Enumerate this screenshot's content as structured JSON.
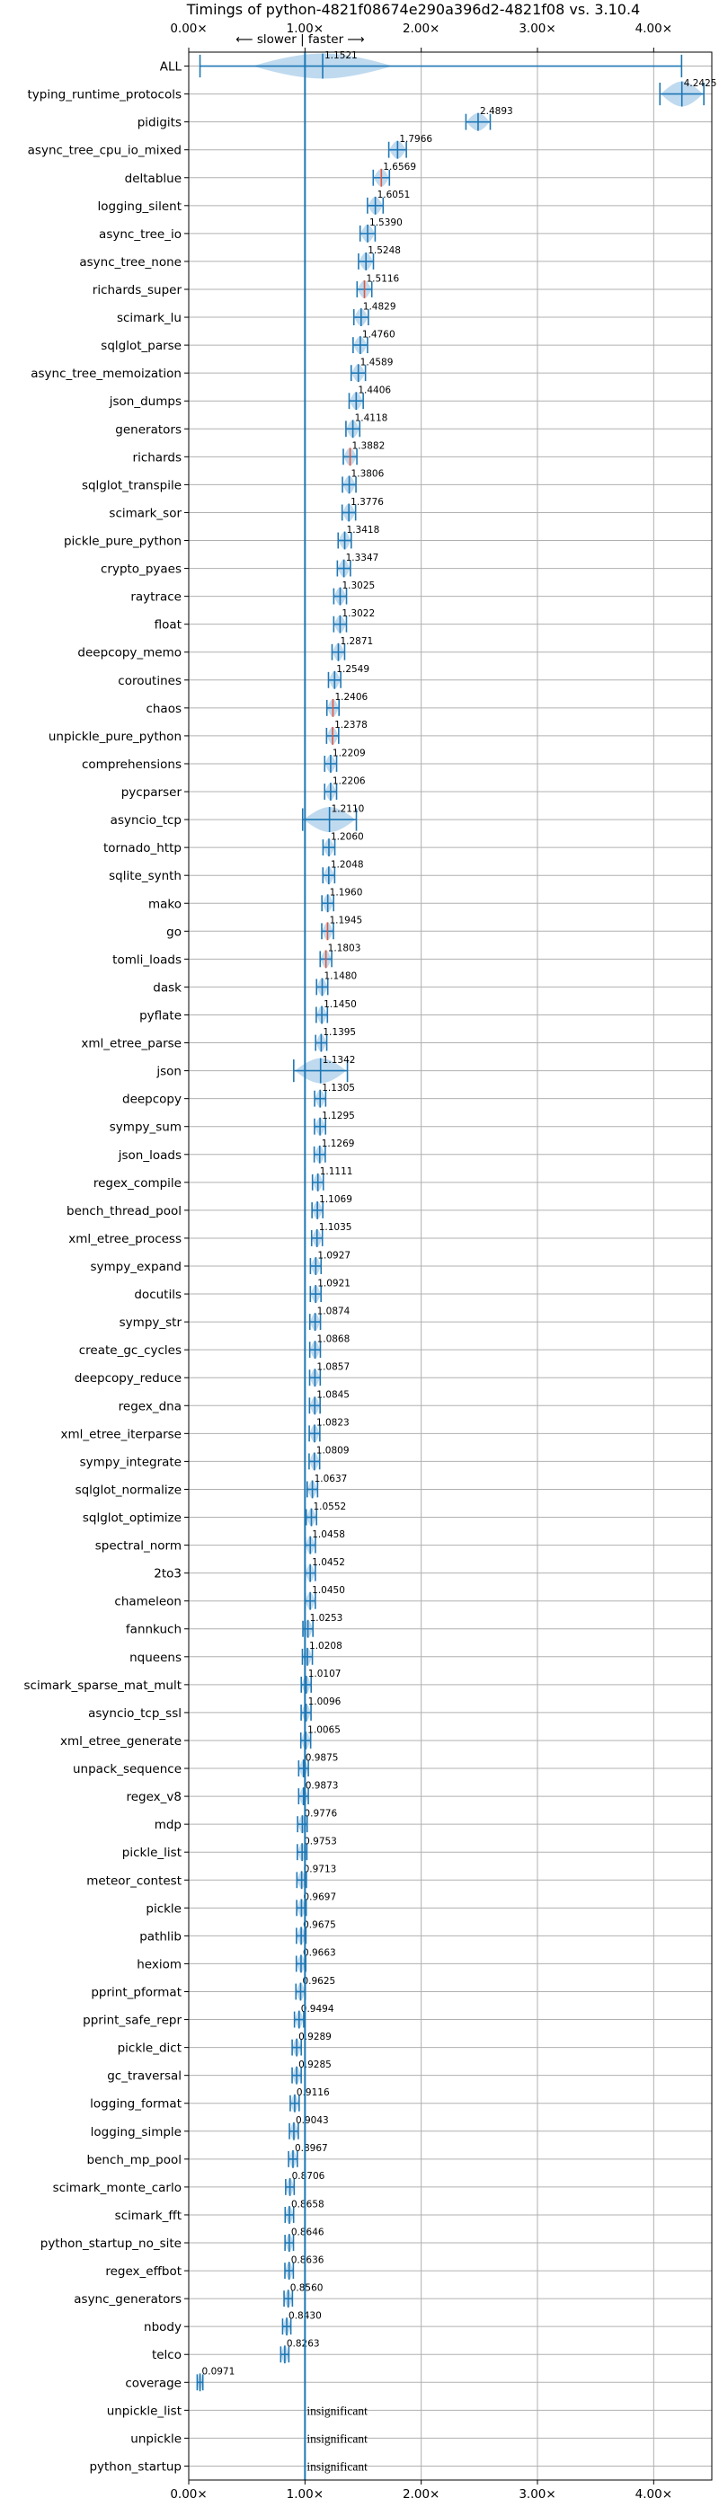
{
  "chart_data": {
    "type": "violin",
    "title": "Timings of python-4821f08674e290a396d2-4821f08 vs. 3.10.4",
    "xlim": [
      0,
      4.5
    ],
    "x_ticks": [
      0,
      1,
      2,
      3,
      4
    ],
    "x_tick_labels": [
      "0.00×",
      "1.00×",
      "2.00×",
      "3.00×",
      "4.00×"
    ],
    "top_annotation": "⟵ slower  |  faster ⟶",
    "reference_line": 1.0,
    "grid": true,
    "colors": {
      "violin": "#a9cdea",
      "line": "#1f77b4",
      "median": "#e6553a"
    },
    "benchmarks": [
      {
        "name": "ALL",
        "value": 1.1521,
        "label": "1.1521"
      },
      {
        "name": "typing_runtime_protocols",
        "value": 4.2425,
        "label": "4.2425"
      },
      {
        "name": "pidigits",
        "value": 2.4893,
        "label": "2.4893"
      },
      {
        "name": "async_tree_cpu_io_mixed",
        "value": 1.7966,
        "label": "1.7966"
      },
      {
        "name": "deltablue",
        "value": 1.6569,
        "label": "1.6569"
      },
      {
        "name": "logging_silent",
        "value": 1.6051,
        "label": "1.6051"
      },
      {
        "name": "async_tree_io",
        "value": 1.539,
        "label": "1.5390"
      },
      {
        "name": "async_tree_none",
        "value": 1.5248,
        "label": "1.5248"
      },
      {
        "name": "richards_super",
        "value": 1.5116,
        "label": "1.5116"
      },
      {
        "name": "scimark_lu",
        "value": 1.4829,
        "label": "1.4829"
      },
      {
        "name": "sqlglot_parse",
        "value": 1.476,
        "label": "1.4760"
      },
      {
        "name": "async_tree_memoization",
        "value": 1.4589,
        "label": "1.4589"
      },
      {
        "name": "json_dumps",
        "value": 1.4406,
        "label": "1.4406"
      },
      {
        "name": "generators",
        "value": 1.4118,
        "label": "1.4118"
      },
      {
        "name": "richards",
        "value": 1.3882,
        "label": "1.3882"
      },
      {
        "name": "sqlglot_transpile",
        "value": 1.3806,
        "label": "1.3806"
      },
      {
        "name": "scimark_sor",
        "value": 1.3776,
        "label": "1.3776"
      },
      {
        "name": "pickle_pure_python",
        "value": 1.3418,
        "label": "1.3418"
      },
      {
        "name": "crypto_pyaes",
        "value": 1.3347,
        "label": "1.3347"
      },
      {
        "name": "raytrace",
        "value": 1.3025,
        "label": "1.3025"
      },
      {
        "name": "float",
        "value": 1.3022,
        "label": "1.3022"
      },
      {
        "name": "deepcopy_memo",
        "value": 1.2871,
        "label": "1.2871"
      },
      {
        "name": "coroutines",
        "value": 1.2549,
        "label": "1.2549"
      },
      {
        "name": "chaos",
        "value": 1.2406,
        "label": "1.2406"
      },
      {
        "name": "unpickle_pure_python",
        "value": 1.2378,
        "label": "1.2378"
      },
      {
        "name": "comprehensions",
        "value": 1.2209,
        "label": "1.2209"
      },
      {
        "name": "pycparser",
        "value": 1.2206,
        "label": "1.2206"
      },
      {
        "name": "asyncio_tcp",
        "value": 1.211,
        "label": "1.2110"
      },
      {
        "name": "tornado_http",
        "value": 1.206,
        "label": "1.2060"
      },
      {
        "name": "sqlite_synth",
        "value": 1.2048,
        "label": "1.2048"
      },
      {
        "name": "mako",
        "value": 1.196,
        "label": "1.1960"
      },
      {
        "name": "go",
        "value": 1.1945,
        "label": "1.1945"
      },
      {
        "name": "tomli_loads",
        "value": 1.1803,
        "label": "1.1803"
      },
      {
        "name": "dask",
        "value": 1.148,
        "label": "1.1480"
      },
      {
        "name": "pyflate",
        "value": 1.145,
        "label": "1.1450"
      },
      {
        "name": "xml_etree_parse",
        "value": 1.1395,
        "label": "1.1395"
      },
      {
        "name": "json",
        "value": 1.1342,
        "label": "1.1342"
      },
      {
        "name": "deepcopy",
        "value": 1.1305,
        "label": "1.1305"
      },
      {
        "name": "sympy_sum",
        "value": 1.1295,
        "label": "1.1295"
      },
      {
        "name": "json_loads",
        "value": 1.1269,
        "label": "1.1269"
      },
      {
        "name": "regex_compile",
        "value": 1.1111,
        "label": "1.1111"
      },
      {
        "name": "bench_thread_pool",
        "value": 1.1069,
        "label": "1.1069"
      },
      {
        "name": "xml_etree_process",
        "value": 1.1035,
        "label": "1.1035"
      },
      {
        "name": "sympy_expand",
        "value": 1.0927,
        "label": "1.0927"
      },
      {
        "name": "docutils",
        "value": 1.0921,
        "label": "1.0921"
      },
      {
        "name": "sympy_str",
        "value": 1.0874,
        "label": "1.0874"
      },
      {
        "name": "create_gc_cycles",
        "value": 1.0868,
        "label": "1.0868"
      },
      {
        "name": "deepcopy_reduce",
        "value": 1.0857,
        "label": "1.0857"
      },
      {
        "name": "regex_dna",
        "value": 1.0845,
        "label": "1.0845"
      },
      {
        "name": "xml_etree_iterparse",
        "value": 1.0823,
        "label": "1.0823"
      },
      {
        "name": "sympy_integrate",
        "value": 1.0809,
        "label": "1.0809"
      },
      {
        "name": "sqlglot_normalize",
        "value": 1.0637,
        "label": "1.0637"
      },
      {
        "name": "sqlglot_optimize",
        "value": 1.0552,
        "label": "1.0552"
      },
      {
        "name": "spectral_norm",
        "value": 1.0458,
        "label": "1.0458"
      },
      {
        "name": "2to3",
        "value": 1.0452,
        "label": "1.0452"
      },
      {
        "name": "chameleon",
        "value": 1.045,
        "label": "1.0450"
      },
      {
        "name": "fannkuch",
        "value": 1.0253,
        "label": "1.0253"
      },
      {
        "name": "nqueens",
        "value": 1.0208,
        "label": "1.0208"
      },
      {
        "name": "scimark_sparse_mat_mult",
        "value": 1.0107,
        "label": "1.0107"
      },
      {
        "name": "asyncio_tcp_ssl",
        "value": 1.0096,
        "label": "1.0096"
      },
      {
        "name": "xml_etree_generate",
        "value": 1.0065,
        "label": "1.0065"
      },
      {
        "name": "unpack_sequence",
        "value": 0.9875,
        "label": "0.9875"
      },
      {
        "name": "regex_v8",
        "value": 0.9873,
        "label": "0.9873"
      },
      {
        "name": "mdp",
        "value": 0.9776,
        "label": "0.9776"
      },
      {
        "name": "pickle_list",
        "value": 0.9753,
        "label": "0.9753"
      },
      {
        "name": "meteor_contest",
        "value": 0.9713,
        "label": "0.9713"
      },
      {
        "name": "pickle",
        "value": 0.9697,
        "label": "0.9697"
      },
      {
        "name": "pathlib",
        "value": 0.9675,
        "label": "0.9675"
      },
      {
        "name": "hexiom",
        "value": 0.9663,
        "label": "0.9663"
      },
      {
        "name": "pprint_pformat",
        "value": 0.9625,
        "label": "0.9625"
      },
      {
        "name": "pprint_safe_repr",
        "value": 0.9494,
        "label": "0.9494"
      },
      {
        "name": "pickle_dict",
        "value": 0.9289,
        "label": "0.9289"
      },
      {
        "name": "gc_traversal",
        "value": 0.9285,
        "label": "0.9285"
      },
      {
        "name": "logging_format",
        "value": 0.9116,
        "label": "0.9116"
      },
      {
        "name": "logging_simple",
        "value": 0.9043,
        "label": "0.9043"
      },
      {
        "name": "bench_mp_pool",
        "value": 0.8967,
        "label": "0.8967"
      },
      {
        "name": "scimark_monte_carlo",
        "value": 0.8706,
        "label": "0.8706"
      },
      {
        "name": "scimark_fft",
        "value": 0.8658,
        "label": "0.8658"
      },
      {
        "name": "python_startup_no_site",
        "value": 0.8646,
        "label": "0.8646"
      },
      {
        "name": "regex_effbot",
        "value": 0.8636,
        "label": "0.8636"
      },
      {
        "name": "async_generators",
        "value": 0.856,
        "label": "0.8560"
      },
      {
        "name": "nbody",
        "value": 0.843,
        "label": "0.8430"
      },
      {
        "name": "telco",
        "value": 0.8263,
        "label": "0.8263"
      },
      {
        "name": "coverage",
        "value": 0.0971,
        "label": "0.0971"
      },
      {
        "name": "unpickle_list",
        "value": null,
        "label": "insignificant"
      },
      {
        "name": "unpickle",
        "value": null,
        "label": "insignificant"
      },
      {
        "name": "python_startup",
        "value": null,
        "label": "insignificant"
      }
    ]
  }
}
